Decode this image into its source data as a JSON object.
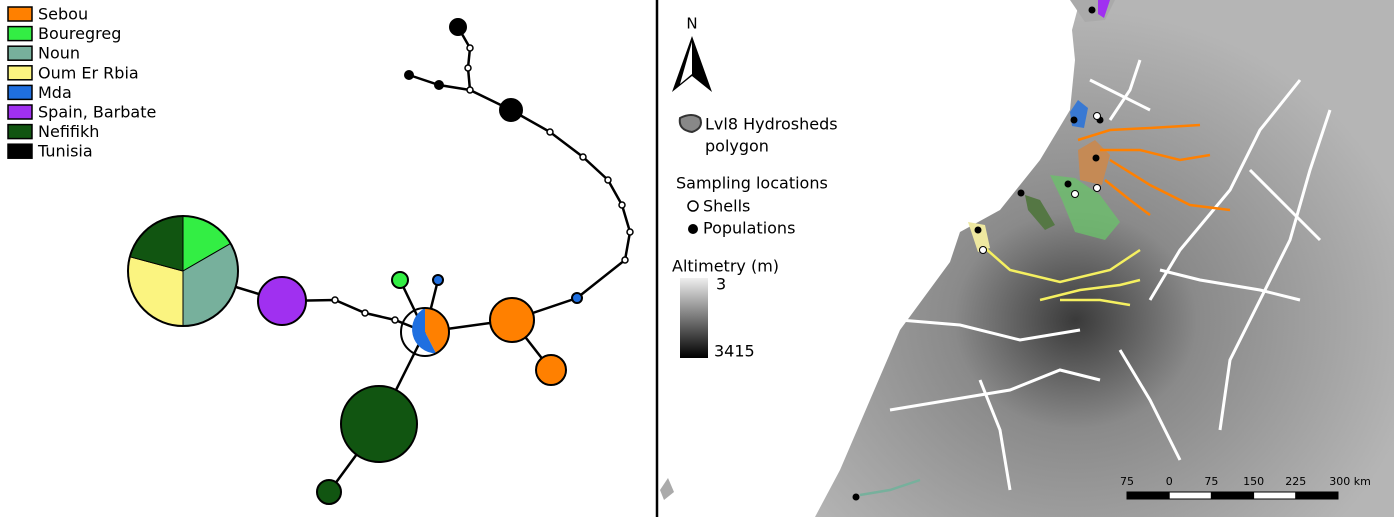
{
  "legend": [
    {
      "label": "Sebou",
      "color": "#ff8000"
    },
    {
      "label": "Bouregreg",
      "color": "#33ee44"
    },
    {
      "label": "Noun",
      "color": "#77b09c"
    },
    {
      "label": "Oum Er Rbia",
      "color": "#fbf480"
    },
    {
      "label": "Mda",
      "color": "#1f6fe0"
    },
    {
      "label": "Spain, Barbate",
      "color": "#a030f0"
    },
    {
      "label": "Nefifikh",
      "color": "#115511"
    },
    {
      "label": "Tunisia",
      "color": "#000000"
    }
  ],
  "map": {
    "north": "N",
    "polygon_label": [
      "Lvl8 Hydrosheds",
      "polygon"
    ],
    "sampling_title": "Sampling locations",
    "shells": "Shells",
    "populations": "Populations",
    "altimetry_title": "Altimetry (m)",
    "altimetry_min": 3,
    "altimetry_max": 3415,
    "scale_labels": [
      "75",
      "0",
      "75",
      "150",
      "225",
      "300 km"
    ]
  }
}
